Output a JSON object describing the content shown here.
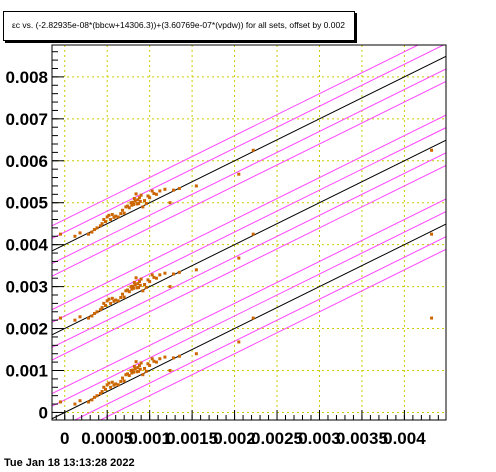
{
  "chart_data": {
    "type": "scatter",
    "title": "εc vs. (-2.82935e-08*(bbcw+14306.3))+(3.60769e-07*(vpdw)) for all sets, offset by 0.002",
    "xlabel": "",
    "ylabel": "",
    "xlim": [
      -0.00015,
      0.00449
    ],
    "ylim": [
      -0.00018,
      0.00876
    ],
    "x_ticks": [
      "0",
      "0.0005",
      "0.001",
      "0.0015",
      "0.002",
      "0.0025",
      "0.003",
      "0.0035",
      "0.004"
    ],
    "y_ticks": [
      "0",
      "0.001",
      "0.002",
      "0.003",
      "0.004",
      "0.005",
      "0.006",
      "0.007",
      "0.008"
    ],
    "grid": true,
    "offset": 0.002,
    "fit_line": {
      "slope": 1.0,
      "intercept": 0.0
    },
    "band_offsets": [
      -0.0006,
      -0.0003,
      0.0003,
      0.0006
    ],
    "colors": {
      "points": "#cc6600",
      "fit": "#000000",
      "bands": "#ff44ff",
      "grid": "#cccc00",
      "frame": "#000000"
    },
    "points": [
      [
        0.00028,
        0.00025
      ],
      [
        0.00032,
        0.0003
      ],
      [
        0.00035,
        0.00036
      ],
      [
        0.00038,
        0.0004
      ],
      [
        0.00042,
        0.00045
      ],
      [
        0.00044,
        0.0005
      ],
      [
        0.00046,
        0.0006
      ],
      [
        0.00048,
        0.00055
      ],
      [
        0.0005,
        0.00066
      ],
      [
        0.00052,
        0.0007
      ],
      [
        0.00054,
        0.0006
      ],
      [
        0.00056,
        0.00072
      ],
      [
        0.00058,
        0.00065
      ],
      [
        0.0006,
        0.00068
      ],
      [
        0.00063,
        0.00066
      ],
      [
        0.00066,
        0.00074
      ],
      [
        0.00068,
        0.00082
      ],
      [
        0.0007,
        0.00075
      ],
      [
        0.00072,
        0.0009
      ],
      [
        0.00074,
        0.00092
      ],
      [
        0.00076,
        0.00088
      ],
      [
        0.00078,
        0.001
      ],
      [
        0.00079,
        0.00094
      ],
      [
        0.0008,
        0.00101
      ],
      [
        0.00081,
        0.00096
      ],
      [
        0.00082,
        0.0011
      ],
      [
        0.00083,
        0.00104
      ],
      [
        0.00084,
        0.00121
      ],
      [
        0.00085,
        0.00097
      ],
      [
        0.00086,
        0.00107
      ],
      [
        0.00087,
        0.00098
      ],
      [
        0.00088,
        0.00112
      ],
      [
        0.00089,
        0.00103
      ],
      [
        0.0009,
        0.00118
      ],
      [
        0.00092,
        0.0009
      ],
      [
        0.00094,
        0.00105
      ],
      [
        0.00096,
        0.00098
      ],
      [
        0.00098,
        0.00116
      ],
      [
        0.001,
        0.00112
      ],
      [
        0.00103,
        0.00128
      ],
      [
        0.00105,
        0.00122
      ],
      [
        0.00108,
        0.0012
      ],
      [
        0.00112,
        0.00128
      ],
      [
        0.00118,
        0.00132
      ],
      [
        0.00124,
        0.001
      ],
      [
        0.00128,
        0.0013
      ],
      [
        0.00135,
        0.00134
      ],
      [
        0.00155,
        0.0014
      ],
      [
        0.00205,
        0.00168
      ],
      [
        0.00222,
        0.00225
      ],
      [
        0.00432,
        0.00225
      ],
      [
        -5e-05,
        0.00025
      ],
      [
        0.00012,
        0.0002
      ],
      [
        0.00018,
        0.00028
      ]
    ]
  },
  "footer": "Tue Jan 18 13:13:28 2022"
}
